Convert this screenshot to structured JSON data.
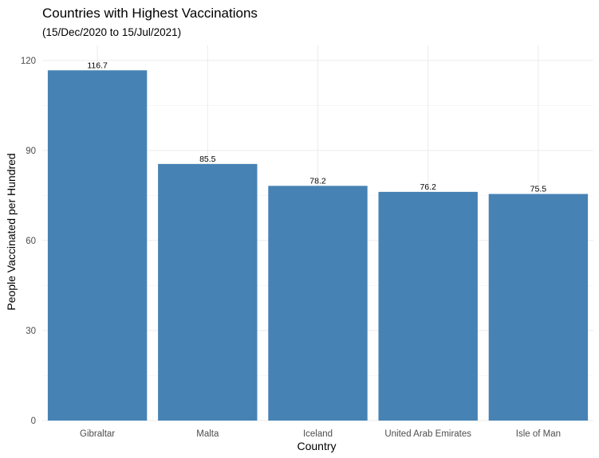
{
  "chart_data": {
    "type": "bar",
    "title": "Countries with Highest Vaccinations",
    "subtitle": "(15/Dec/2020 to 15/Jul/2021)",
    "xlabel": "Country",
    "ylabel": "People Vaccinated per Hundred",
    "categories": [
      "Gibraltar",
      "Malta",
      "Iceland",
      "United Arab Emirates",
      "Isle of Man"
    ],
    "values": [
      116.7,
      85.5,
      78.2,
      76.2,
      75.5
    ],
    "data_labels": [
      "116.7",
      "85.5",
      "78.2",
      "76.2",
      "75.5"
    ],
    "ylim": [
      0,
      125
    ],
    "yticks": [
      0,
      30,
      60,
      90,
      120
    ],
    "ytick_labels": [
      "0",
      "30",
      "60",
      "90",
      "120"
    ],
    "grid": true,
    "legend": "none",
    "bar_color": "#4682b4"
  }
}
